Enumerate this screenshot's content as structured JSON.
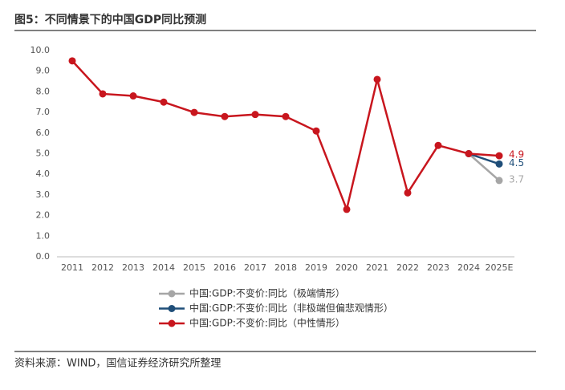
{
  "chart_data": {
    "type": "line",
    "title": "图5：不同情景下的中国GDP同比预测",
    "source": "资料来源：WIND，国信证券经济研究所整理",
    "categories": [
      "2011",
      "2012",
      "2013",
      "2014",
      "2015",
      "2016",
      "2017",
      "2018",
      "2019",
      "2020",
      "2021",
      "2022",
      "2023",
      "2024",
      "2025E"
    ],
    "series": [
      {
        "name": "中国:GDP:不变价:同比（极端情形）",
        "color": "#a6a6a6",
        "values": [
          null,
          null,
          null,
          null,
          null,
          null,
          null,
          null,
          null,
          null,
          null,
          null,
          null,
          5.0,
          3.7
        ]
      },
      {
        "name": "中国:GDP:不变价:同比（非极端但偏悲观情形）",
        "color": "#1f4e79",
        "values": [
          null,
          null,
          null,
          null,
          null,
          null,
          null,
          null,
          null,
          null,
          null,
          null,
          null,
          5.0,
          4.5
        ]
      },
      {
        "name": "中国:GDP:不变价:同比（中性情形）",
        "color": "#c8161e",
        "values": [
          9.5,
          7.9,
          7.8,
          7.5,
          7.0,
          6.8,
          6.9,
          6.8,
          6.1,
          2.3,
          8.6,
          3.1,
          5.4,
          5.0,
          4.9
        ]
      }
    ],
    "ylim": [
      0,
      10
    ],
    "yticks": [
      {
        "value": 0,
        "label": "0.0"
      },
      {
        "value": 1,
        "label": "1.0"
      },
      {
        "value": 2,
        "label": "2.0"
      },
      {
        "value": 3,
        "label": "3.0"
      },
      {
        "value": 4,
        "label": "4.0"
      },
      {
        "value": 5,
        "label": "5.0"
      },
      {
        "value": 6,
        "label": "6.0"
      },
      {
        "value": 7,
        "label": "7.0"
      },
      {
        "value": 8,
        "label": "8.0"
      },
      {
        "value": 9,
        "label": "9.0"
      },
      {
        "value": 10,
        "label": "10.0"
      }
    ],
    "grid": false
  }
}
